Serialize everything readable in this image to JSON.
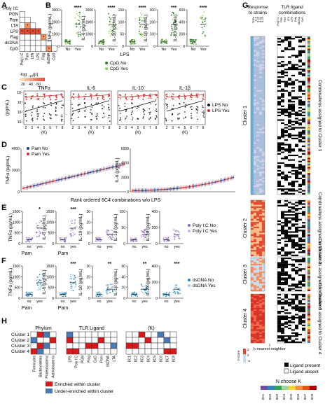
{
  "panels": {
    "A": "A",
    "B": "B",
    "C": "C",
    "D": "D",
    "E": "E",
    "F": "F",
    "G": "G",
    "H": "H"
  },
  "panelA": {
    "rows": [
      "Poly I:C",
      "PGN",
      "Pam",
      "LTA",
      "LPS",
      "Flag",
      "dsDNA",
      "CpG"
    ],
    "cols": [
      "Poly I:C",
      "Pam",
      "LTA",
      "LPS",
      "Flag",
      "dsDNA",
      "CpG"
    ],
    "caption": "-log",
    "caption_sub": "10",
    "caption_end": "(p)",
    "scale_ticks": [
      "20",
      "40",
      "60"
    ],
    "sig_cells": [
      [
        3,
        1,
        "*"
      ],
      [
        4,
        0,
        "*"
      ],
      [
        4,
        1,
        "*"
      ],
      [
        4,
        2,
        "*"
      ],
      [
        4,
        3,
        "*"
      ],
      [
        4,
        5,
        "*"
      ],
      [
        4,
        6,
        "*"
      ],
      [
        5,
        4,
        "*"
      ],
      [
        6,
        6,
        "*"
      ],
      [
        7,
        5,
        "*"
      ]
    ]
  },
  "panelB": {
    "plots": [
      {
        "ylabel": "TNFα (pg/mL)",
        "ticks": [
          "3000",
          "2000",
          "1000",
          "0"
        ],
        "stars": "****"
      },
      {
        "ylabel": "IL-6 (pg/mL)",
        "ticks": [
          "3000",
          "2000",
          "1000",
          "0"
        ],
        "stars": "****"
      },
      {
        "ylabel": "IL-10 (pg/mL)",
        "ticks": [
          "150",
          "100",
          "50",
          "0"
        ],
        "stars": "****"
      },
      {
        "ylabel": "IL-1β (pg/mL)",
        "ticks": [
          "300",
          "200",
          "100",
          "0"
        ],
        "stars": "***"
      },
      {
        "ylabel": "IL-23 (pg/mL)",
        "ticks": [
          "600",
          "400",
          "200",
          "0"
        ],
        "stars": "****"
      }
    ],
    "x_no": "No",
    "x_yes": "Yes",
    "xlabel": "LPS",
    "legend": [
      "CpG No",
      "CpG Yes"
    ]
  },
  "panelC": {
    "titles": [
      "TNFα",
      "IL-6",
      "IL-10",
      "IL-1β"
    ],
    "ylabel": "(pg/mL)",
    "yticks": [
      "10⁴",
      "10³",
      "10²",
      "10¹"
    ],
    "xticks": [
      "2",
      "3",
      "4",
      "5",
      "6",
      "7",
      "8"
    ],
    "xlabel": "(K)",
    "legend": [
      "LPS No",
      "LPS Yes"
    ]
  },
  "panelD": {
    "plots": [
      {
        "ylabel": "TNFα (pg/mL)",
        "yticks": [
          "4000",
          "2000",
          "0"
        ]
      },
      {
        "ylabel": "IL-6 (pg/mL)",
        "yticks": [
          "6000",
          "4000",
          "2000",
          "0"
        ]
      }
    ],
    "legend": [
      "Pam No",
      "Pam Yes"
    ],
    "xlabel": "Rank ordered 8C4 combinations w/o LPS"
  },
  "panelE": {
    "plots": [
      {
        "ylabel": "TNFα (pg/mL)",
        "ticks": [
          "1500",
          "1000",
          "500",
          "0"
        ],
        "stars": "*"
      },
      {
        "ylabel": "IL-6 (pg/mL)",
        "ticks": [
          "1500",
          "1000",
          "500",
          "0"
        ],
        "stars": "***"
      },
      {
        "ylabel": "IL-10 (pg/mL)",
        "ticks": [
          "30",
          "20",
          "10",
          "0"
        ],
        "stars": ""
      },
      {
        "ylabel": "IL-1β (pg/mL)",
        "ticks": [
          "100",
          "50",
          "0"
        ],
        "stars": ""
      },
      {
        "ylabel": "IL-23 (pg/mL)",
        "ticks": [
          "400",
          "200",
          "0"
        ],
        "stars": ""
      }
    ],
    "x_no": "no",
    "x_yes": "yes",
    "xlabel": "Pam",
    "legend": [
      "Poly I:C No",
      "Poly I:C Yes"
    ]
  },
  "panelF": {
    "plots": [
      {
        "ylabel": "TNFα (pg/mL)",
        "ticks": [
          "1500",
          "1000",
          "500",
          "0"
        ],
        "stars": ""
      },
      {
        "ylabel": "IL-6 (pg/mL)",
        "ticks": [
          "1500",
          "1000",
          "500",
          "0"
        ],
        "stars": "***"
      },
      {
        "ylabel": "IL-10 (pg/mL)",
        "ticks": [
          "30",
          "20",
          "10",
          "0"
        ],
        "stars": "**"
      },
      {
        "ylabel": "IL-1β (pg/mL)",
        "ticks": [
          "60",
          "40",
          "20",
          "0"
        ],
        "stars": "**"
      },
      {
        "ylabel": "IL-23 (pg/mL)",
        "ticks": [
          "400",
          "200",
          "0"
        ],
        "stars": "***"
      }
    ],
    "x_no": "no",
    "x_yes": "yes",
    "xlabel": "Pam",
    "legend": [
      "dsDNA No",
      "dsDNA Yes"
    ]
  },
  "panelG": {
    "header_left": "Response to strains",
    "header_right": "TLR ligand combinations",
    "cyto_cols": [
      "TNFα",
      "IL-6",
      "IL-10",
      "IL-1β",
      "IL-23"
    ],
    "ligand_cols": [
      "Poly I:C",
      "PGN",
      "Pam",
      "LTA",
      "LPS",
      "Flag",
      "dsDNA",
      "CpG"
    ],
    "clusters": [
      {
        "name": "Cluster 1",
        "side": "Combinations assigned to Cluster 1"
      },
      {
        "name": "Cluster 2",
        "side": "Combinations assigned to Cluster 2"
      },
      {
        "name": "Cluster 3",
        "side": "Combinations assigned to Cluster 3"
      },
      {
        "name": "Cluster 4",
        "side": "Combinations assigned to Cluster 4"
      }
    ],
    "zscore_label": "z-score",
    "zscore_ticks": [
      "2",
      "0",
      "-2"
    ],
    "knn_label": "k-nearest neighbor",
    "legend": [
      "Ligand present",
      "Ligand absent"
    ],
    "nchoosek_title": "N choose K",
    "nchoosek": [
      "8C1",
      "8C2",
      "8C3",
      "8C4",
      "8C5",
      "8C6",
      "8C7",
      "8C8"
    ],
    "nchoosek_colors": [
      "#6a51a3",
      "#3182bd",
      "#31a354",
      "#a1d99b",
      "#fdd835",
      "#fd8d3c",
      "#e6550d",
      "#b30000"
    ]
  },
  "panelH": {
    "title_phylum": "Phylum",
    "title_tlr": "TLR Ligand",
    "title_k": "(K)",
    "rows": [
      "Cluster 1",
      "Cluster 2",
      "Cluster 3",
      "Cluster 4"
    ],
    "phylum_cols": [
      "Firmicutes",
      "Bacteroidetes",
      "Proteobacteria",
      "Actinobacteria"
    ],
    "tlr_cols": [
      "LPS",
      "Poly I:C",
      "PGN",
      "Flag",
      "CpG",
      "Pam",
      "dsDNA",
      "LTA"
    ],
    "k_cols": [
      "8C1",
      "8C2",
      "8C3",
      "8C4",
      "8C5",
      "8C6",
      "8C7",
      "8C8"
    ],
    "phylum_cells": [
      [
        0,
        1,
        "r"
      ],
      [
        0,
        2,
        "b"
      ],
      [
        1,
        0,
        "b"
      ],
      [
        1,
        3,
        "r"
      ],
      [
        2,
        1,
        "r"
      ],
      [
        2,
        2,
        "b"
      ],
      [
        3,
        0,
        "r"
      ],
      [
        3,
        1,
        "b"
      ]
    ],
    "tlr_cells": [
      [
        0,
        0,
        "b"
      ],
      [
        1,
        0,
        "r"
      ],
      [
        1,
        5,
        "r"
      ],
      [
        2,
        3,
        "r"
      ],
      [
        2,
        4,
        "r"
      ],
      [
        2,
        7,
        "b"
      ],
      [
        3,
        0,
        "r"
      ],
      [
        3,
        1,
        "r"
      ]
    ],
    "k_cells": [
      [
        0,
        2,
        "r"
      ],
      [
        0,
        5,
        "b"
      ],
      [
        1,
        3,
        "r"
      ],
      [
        1,
        6,
        "b"
      ],
      [
        2,
        0,
        "r"
      ],
      [
        2,
        1,
        "r"
      ],
      [
        3,
        6,
        "r"
      ],
      [
        3,
        7,
        "r"
      ]
    ],
    "legend": [
      "Enriched within cluster",
      "Under-enriched within cluster"
    ],
    "red": "#d7191c",
    "blue": "#4a7ab8"
  },
  "colors": {
    "green_no": "#2e7d32",
    "green_yes": "#9ccc65",
    "red": "#d32f2f",
    "black": "#111111",
    "blue": "#2b8cbe",
    "purple": "#8e6bb5",
    "lightblue": "#6baed6"
  }
}
